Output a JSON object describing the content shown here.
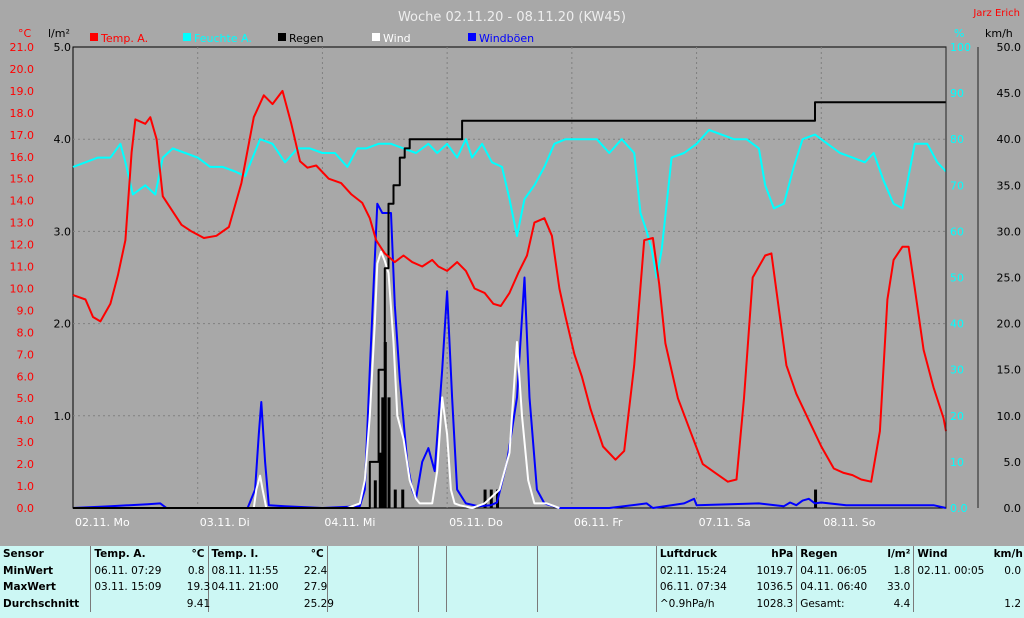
{
  "chart_data": {
    "type": "line",
    "title": "Woche 02.11.20 - 08.11.20 (KW45)",
    "author": "Jarz Erich",
    "axes": {
      "temp_unit": "°C",
      "rain_unit": "l/m²",
      "hum_unit": "%",
      "wind_unit": "km/h",
      "temp_ticks": [
        "0.0",
        "1.0",
        "2.0",
        "3.0",
        "4.0",
        "5.0",
        "6.0",
        "7.0",
        "8.0",
        "9.0",
        "10.0",
        "11.0",
        "12.0",
        "13.0",
        "14.0",
        "15.0",
        "16.0",
        "17.0",
        "18.0",
        "19.0",
        "20.0",
        "21.0"
      ],
      "rain_ticks": [
        "1.0",
        "2.0",
        "3.0",
        "4.0",
        "5.0"
      ],
      "hum_ticks": [
        "0.0",
        "10",
        "20",
        "30",
        "40",
        "50",
        "60",
        "70",
        "80",
        "90",
        "100"
      ],
      "wind_ticks": [
        "0.0",
        "5.0",
        "10.0",
        "15.0",
        "20.0",
        "25.0",
        "30.0",
        "35.0",
        "40.0",
        "45.0",
        "50.0"
      ],
      "temp_range": [
        0,
        21
      ],
      "rain_range": [
        0,
        5
      ],
      "hum_range": [
        0,
        100
      ],
      "wind_range": [
        0,
        50
      ],
      "x_range_days": [
        0,
        7
      ],
      "day_labels": [
        "02.11. Mo",
        "03.11. Di",
        "04.11. Mi",
        "05.11. Do",
        "06.11. Fr",
        "07.11. Sa",
        "08.11. So"
      ]
    },
    "legend": [
      {
        "name": "Temp. A.",
        "color": "#ff0000"
      },
      {
        "name": "Feuchte A.",
        "color": "#00ffff"
      },
      {
        "name": "Regen",
        "color": "#000000"
      },
      {
        "name": "Wind",
        "color": "#ffffff"
      },
      {
        "name": "Windböen",
        "color": "#0000ff"
      }
    ],
    "series": {
      "temp": [
        [
          0,
          9.7
        ],
        [
          0.1,
          9.5
        ],
        [
          0.16,
          8.7
        ],
        [
          0.22,
          8.5
        ],
        [
          0.3,
          9.3
        ],
        [
          0.36,
          10.6
        ],
        [
          0.42,
          12.2
        ],
        [
          0.47,
          16.2
        ],
        [
          0.5,
          17.7
        ],
        [
          0.58,
          17.5
        ],
        [
          0.62,
          17.8
        ],
        [
          0.67,
          16.8
        ],
        [
          0.72,
          14.2
        ],
        [
          0.8,
          13.5
        ],
        [
          0.87,
          12.9
        ],
        [
          0.95,
          12.6
        ],
        [
          1.05,
          12.3
        ],
        [
          1.15,
          12.4
        ],
        [
          1.25,
          12.8
        ],
        [
          1.35,
          14.8
        ],
        [
          1.45,
          17.8
        ],
        [
          1.53,
          18.8
        ],
        [
          1.6,
          18.4
        ],
        [
          1.68,
          19.0
        ],
        [
          1.75,
          17.5
        ],
        [
          1.82,
          15.8
        ],
        [
          1.88,
          15.5
        ],
        [
          1.95,
          15.6
        ],
        [
          2.05,
          15.0
        ],
        [
          2.15,
          14.8
        ],
        [
          2.23,
          14.3
        ],
        [
          2.32,
          13.9
        ],
        [
          2.38,
          13.2
        ],
        [
          2.43,
          12.2
        ],
        [
          2.5,
          11.6
        ],
        [
          2.58,
          11.2
        ],
        [
          2.65,
          11.5
        ],
        [
          2.72,
          11.2
        ],
        [
          2.8,
          11.0
        ],
        [
          2.88,
          11.3
        ],
        [
          2.93,
          11.0
        ],
        [
          3.0,
          10.8
        ],
        [
          3.08,
          11.2
        ],
        [
          3.15,
          10.8
        ],
        [
          3.22,
          10.0
        ],
        [
          3.3,
          9.8
        ],
        [
          3.37,
          9.3
        ],
        [
          3.43,
          9.2
        ],
        [
          3.5,
          9.8
        ],
        [
          3.57,
          10.7
        ],
        [
          3.64,
          11.5
        ],
        [
          3.7,
          13.0
        ],
        [
          3.78,
          13.2
        ],
        [
          3.84,
          12.4
        ],
        [
          3.9,
          10.0
        ],
        [
          3.95,
          8.7
        ],
        [
          4.02,
          7.0
        ],
        [
          4.08,
          6.0
        ],
        [
          4.15,
          4.5
        ],
        [
          4.25,
          2.8
        ],
        [
          4.35,
          2.2
        ],
        [
          4.42,
          2.6
        ],
        [
          4.5,
          6.5
        ],
        [
          4.58,
          12.2
        ],
        [
          4.65,
          12.3
        ],
        [
          4.7,
          10.2
        ],
        [
          4.75,
          7.5
        ],
        [
          4.85,
          5.0
        ],
        [
          4.95,
          3.5
        ],
        [
          5.05,
          2.0
        ],
        [
          5.15,
          1.6
        ],
        [
          5.25,
          1.2
        ],
        [
          5.32,
          1.3
        ],
        [
          5.38,
          5.0
        ],
        [
          5.45,
          10.5
        ],
        [
          5.55,
          11.5
        ],
        [
          5.6,
          11.6
        ],
        [
          5.65,
          9.5
        ],
        [
          5.72,
          6.5
        ],
        [
          5.8,
          5.2
        ],
        [
          5.9,
          4.0
        ],
        [
          6.0,
          2.8
        ],
        [
          6.1,
          1.8
        ],
        [
          6.18,
          1.6
        ],
        [
          6.25,
          1.5
        ],
        [
          6.32,
          1.3
        ],
        [
          6.4,
          1.2
        ],
        [
          6.47,
          3.5
        ],
        [
          6.53,
          9.5
        ],
        [
          6.58,
          11.3
        ],
        [
          6.65,
          11.9
        ],
        [
          6.7,
          11.9
        ],
        [
          6.75,
          10.0
        ],
        [
          6.82,
          7.2
        ],
        [
          6.9,
          5.5
        ],
        [
          6.98,
          4.1
        ],
        [
          7.0,
          3.5
        ]
      ],
      "hum": [
        [
          0,
          74
        ],
        [
          0.1,
          75
        ],
        [
          0.2,
          76
        ],
        [
          0.3,
          76
        ],
        [
          0.38,
          79
        ],
        [
          0.42,
          75
        ],
        [
          0.48,
          68
        ],
        [
          0.58,
          70
        ],
        [
          0.66,
          68
        ],
        [
          0.72,
          76
        ],
        [
          0.8,
          78
        ],
        [
          0.9,
          77
        ],
        [
          1.0,
          76
        ],
        [
          1.1,
          74
        ],
        [
          1.2,
          74
        ],
        [
          1.3,
          73
        ],
        [
          1.38,
          72
        ],
        [
          1.5,
          80
        ],
        [
          1.6,
          79
        ],
        [
          1.7,
          75
        ],
        [
          1.8,
          78
        ],
        [
          1.9,
          78
        ],
        [
          2.0,
          77
        ],
        [
          2.1,
          77
        ],
        [
          2.2,
          74
        ],
        [
          2.28,
          78
        ],
        [
          2.35,
          78
        ],
        [
          2.45,
          79
        ],
        [
          2.55,
          79
        ],
        [
          2.65,
          78
        ],
        [
          2.75,
          77
        ],
        [
          2.85,
          79
        ],
        [
          2.92,
          77
        ],
        [
          3.0,
          79
        ],
        [
          3.08,
          76
        ],
        [
          3.15,
          80
        ],
        [
          3.2,
          76
        ],
        [
          3.28,
          79
        ],
        [
          3.36,
          75
        ],
        [
          3.44,
          74
        ],
        [
          3.5,
          67
        ],
        [
          3.56,
          59
        ],
        [
          3.62,
          67
        ],
        [
          3.7,
          70
        ],
        [
          3.78,
          74
        ],
        [
          3.86,
          79
        ],
        [
          3.95,
          80
        ],
        [
          4.1,
          80
        ],
        [
          4.2,
          80
        ],
        [
          4.3,
          77
        ],
        [
          4.4,
          80
        ],
        [
          4.5,
          77
        ],
        [
          4.55,
          64
        ],
        [
          4.6,
          60
        ],
        [
          4.64,
          56
        ],
        [
          4.68,
          50
        ],
        [
          4.72,
          56
        ],
        [
          4.8,
          76
        ],
        [
          4.9,
          77
        ],
        [
          5.0,
          79
        ],
        [
          5.1,
          82
        ],
        [
          5.2,
          81
        ],
        [
          5.3,
          80
        ],
        [
          5.4,
          80
        ],
        [
          5.5,
          78
        ],
        [
          5.55,
          70
        ],
        [
          5.62,
          65
        ],
        [
          5.7,
          66
        ],
        [
          5.78,
          74
        ],
        [
          5.85,
          80
        ],
        [
          5.95,
          81
        ],
        [
          6.05,
          79
        ],
        [
          6.15,
          77
        ],
        [
          6.25,
          76
        ],
        [
          6.35,
          75
        ],
        [
          6.42,
          77
        ],
        [
          6.5,
          71
        ],
        [
          6.58,
          66
        ],
        [
          6.65,
          65
        ],
        [
          6.75,
          79
        ],
        [
          6.85,
          79
        ],
        [
          6.93,
          75
        ],
        [
          7.0,
          73
        ]
      ],
      "wind": [
        [
          2.2,
          0
        ],
        [
          2.3,
          0.5
        ],
        [
          2.34,
          3
        ],
        [
          2.38,
          10
        ],
        [
          2.42,
          20
        ],
        [
          2.44,
          26.5
        ],
        [
          2.47,
          27.8
        ],
        [
          2.5,
          26.8
        ],
        [
          2.53,
          25.5
        ],
        [
          2.57,
          18
        ],
        [
          2.6,
          10
        ],
        [
          2.65,
          7.5
        ],
        [
          2.7,
          3
        ],
        [
          2.75,
          1
        ],
        [
          2.78,
          0.5
        ],
        [
          2.83,
          0.5
        ],
        [
          2.88,
          0.5
        ],
        [
          2.92,
          4
        ],
        [
          2.96,
          12
        ],
        [
          3.0,
          8
        ],
        [
          3.03,
          2
        ],
        [
          3.06,
          0.5
        ],
        [
          3.1,
          0.3
        ],
        [
          3.2,
          0
        ],
        [
          3.3,
          0.5
        ],
        [
          3.42,
          2
        ],
        [
          3.5,
          6
        ],
        [
          3.56,
          18
        ],
        [
          3.6,
          10
        ],
        [
          3.65,
          3
        ],
        [
          3.7,
          0.5
        ],
        [
          3.8,
          0.5
        ],
        [
          3.9,
          0
        ]
      ],
      "wind_static": [
        [
          1.4,
          0
        ],
        [
          1.45,
          0
        ],
        [
          1.47,
          2
        ],
        [
          1.5,
          3.5
        ],
        [
          1.52,
          2
        ],
        [
          1.55,
          0
        ],
        [
          1.6,
          0
        ]
      ],
      "gust": [
        [
          0,
          0
        ],
        [
          0.3,
          0.2
        ],
        [
          0.6,
          0.4
        ],
        [
          0.7,
          0.5
        ],
        [
          0.75,
          0
        ],
        [
          0.9,
          0
        ],
        [
          1.2,
          0
        ],
        [
          1.4,
          0
        ],
        [
          1.46,
          2
        ],
        [
          1.49,
          8
        ],
        [
          1.51,
          11.5
        ],
        [
          1.54,
          5
        ],
        [
          1.57,
          0.3
        ],
        [
          1.7,
          0.2
        ],
        [
          2.0,
          0
        ],
        [
          2.3,
          0.2
        ],
        [
          2.34,
          2
        ],
        [
          2.38,
          15
        ],
        [
          2.44,
          33
        ],
        [
          2.48,
          32
        ],
        [
          2.55,
          32
        ],
        [
          2.58,
          22
        ],
        [
          2.62,
          14
        ],
        [
          2.68,
          5
        ],
        [
          2.72,
          2
        ],
        [
          2.75,
          1
        ],
        [
          2.8,
          5
        ],
        [
          2.85,
          6.5
        ],
        [
          2.9,
          4
        ],
        [
          2.96,
          15
        ],
        [
          3.0,
          23.5
        ],
        [
          3.04,
          12
        ],
        [
          3.08,
          2
        ],
        [
          3.15,
          0.5
        ],
        [
          3.25,
          0.2
        ],
        [
          3.35,
          0.3
        ],
        [
          3.4,
          0.6
        ],
        [
          3.48,
          5
        ],
        [
          3.56,
          12
        ],
        [
          3.62,
          25
        ],
        [
          3.66,
          12
        ],
        [
          3.72,
          2
        ],
        [
          3.78,
          0.5
        ],
        [
          3.9,
          0
        ],
        [
          4.3,
          0
        ],
        [
          4.6,
          0.5
        ],
        [
          4.65,
          0
        ],
        [
          4.9,
          0.5
        ],
        [
          4.98,
          1
        ],
        [
          5.0,
          0.3
        ],
        [
          5.5,
          0.5
        ],
        [
          5.7,
          0.2
        ],
        [
          5.75,
          0.6
        ],
        [
          5.8,
          0.3
        ],
        [
          5.85,
          0.8
        ],
        [
          5.9,
          1
        ],
        [
          5.95,
          0.5
        ],
        [
          6.0,
          0.6
        ],
        [
          6.2,
          0.3
        ],
        [
          6.5,
          0.3
        ],
        [
          6.9,
          0.3
        ],
        [
          7.0,
          0
        ]
      ],
      "rain_cum": [
        [
          0,
          0
        ],
        [
          2.3,
          0
        ],
        [
          2.38,
          0.5
        ],
        [
          2.45,
          1.5
        ],
        [
          2.5,
          2.6
        ],
        [
          2.53,
          3.3
        ],
        [
          2.57,
          3.5
        ],
        [
          2.62,
          3.8
        ],
        [
          2.66,
          3.9
        ],
        [
          2.7,
          4.0
        ],
        [
          3.0,
          4.0
        ],
        [
          3.08,
          4.0
        ],
        [
          3.12,
          4.2
        ],
        [
          5.92,
          4.2
        ],
        [
          5.95,
          4.4
        ],
        [
          7.0,
          4.4
        ]
      ],
      "rain_bars": [
        [
          2.42,
          0.3
        ],
        [
          2.46,
          0.6
        ],
        [
          2.48,
          1.2
        ],
        [
          2.5,
          1.8
        ],
        [
          2.53,
          1.2
        ],
        [
          2.58,
          0.2
        ],
        [
          2.64,
          0.2
        ],
        [
          3.3,
          0.2
        ],
        [
          3.35,
          0.2
        ],
        [
          3.4,
          0.2
        ],
        [
          5.95,
          0.2
        ]
      ]
    }
  },
  "stats": {
    "headers": [
      "Sensor",
      "Temp. A.",
      "°C",
      "Temp. I.",
      "°C",
      "",
      "",
      "",
      "",
      "Luftdruck",
      "hPa",
      "Regen",
      "l/m²",
      "Wind",
      "km/h"
    ],
    "rows": [
      [
        "MinWert",
        "06.11.  07:29",
        "0.8",
        "08.11.  11:55",
        "22.4",
        "",
        "",
        "",
        "",
        "02.11.  15:24",
        "1019.7",
        "04.11.  06:05",
        "1.8",
        "02.11.  00:05",
        "0.0"
      ],
      [
        "MaxWert",
        "03.11.  15:09",
        "19.3",
        "04.11.  21:00",
        "27.9",
        "",
        "",
        "",
        "",
        "06.11.  07:34",
        "1036.5",
        "04.11.  06:40",
        "33.0",
        "",
        ""
      ],
      [
        "Durchschnitt",
        "",
        "9.41",
        "",
        "25.29",
        "",
        "",
        "",
        "",
        "^0.9hPa/h",
        "1028.3",
        "Gesamt:",
        "4.4",
        "",
        "1.2"
      ]
    ]
  }
}
